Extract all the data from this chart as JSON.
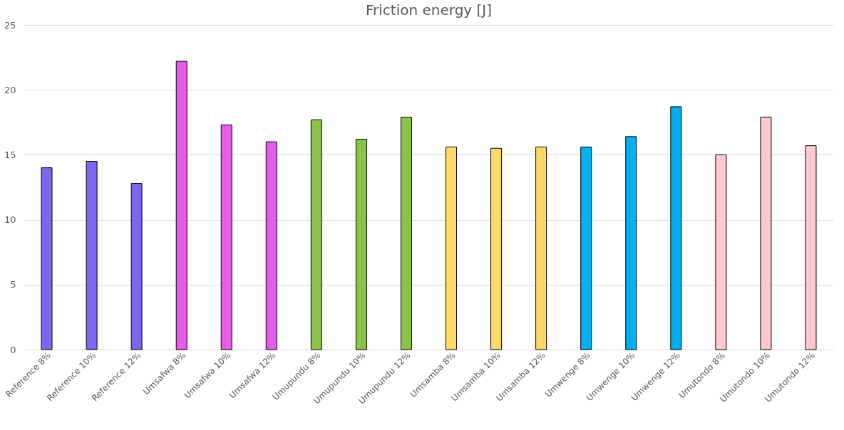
{
  "chart_data": {
    "type": "bar",
    "title": "Friction energy [J]",
    "categories": [
      "Reference 8%",
      "Reference 10%",
      "Reference 12%",
      "Umsafwa 8%",
      "Umsafwa 10%",
      "Umsafwa 12%",
      "Umupundu 8%",
      "Umupundu 10%",
      "Umupundu 12%",
      "Umsamba 8%",
      "Umsamba 10%",
      "Umsamba 12%",
      "Umwenge 8%",
      "Umwenge 10%",
      "Umwenge 12%",
      "Umutondo 8%",
      "Umutondo 10%",
      "Umutondo 12%"
    ],
    "values": [
      14.0,
      14.5,
      12.8,
      22.2,
      17.3,
      16.0,
      17.7,
      16.2,
      17.9,
      15.6,
      15.5,
      15.6,
      15.6,
      16.4,
      18.7,
      15.0,
      17.9,
      15.7
    ],
    "colors": [
      "#7b68ee",
      "#7b68ee",
      "#7b68ee",
      "#e85ae8",
      "#e85ae8",
      "#e85ae8",
      "#8bc34a",
      "#8bc34a",
      "#8bc34a",
      "#ffd966",
      "#ffd966",
      "#ffd966",
      "#00b0f0",
      "#00b0f0",
      "#00b0f0",
      "#ffc7ce",
      "#ffc7ce",
      "#ffc7ce"
    ],
    "ylim": [
      0,
      25
    ],
    "yticks": [
      0,
      5,
      10,
      15,
      20,
      25
    ],
    "grid": "y"
  }
}
